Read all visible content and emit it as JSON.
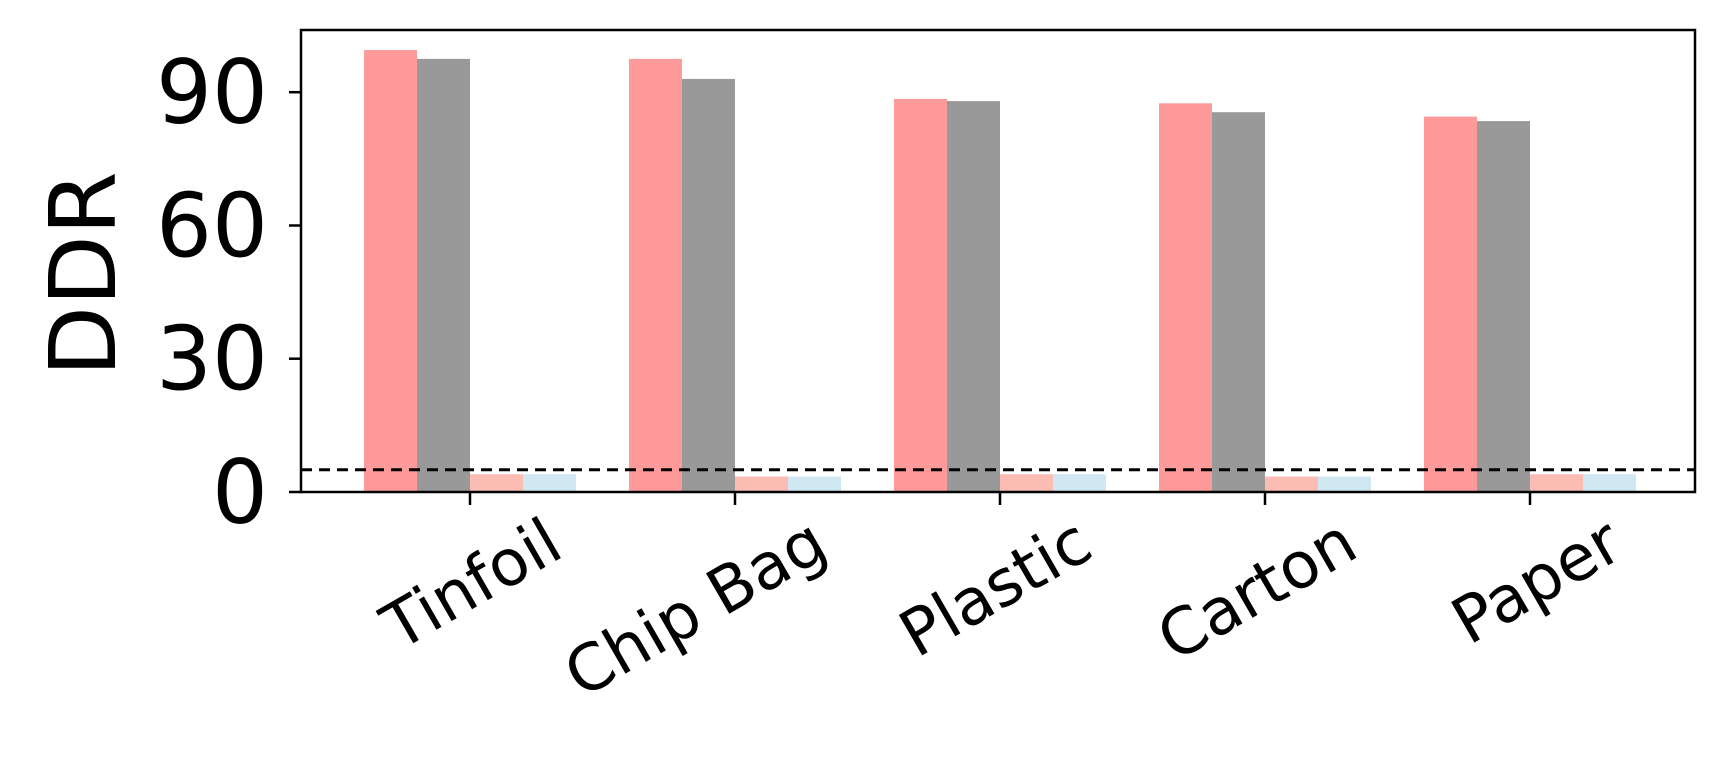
{
  "chart_data": {
    "type": "bar",
    "title": "",
    "xlabel": "",
    "ylabel": "DDR",
    "ylim": [
      0,
      104
    ],
    "yticks": [
      0,
      30,
      60,
      90
    ],
    "categories": [
      "Tinfoil",
      "Chip Bag",
      "Plastic",
      "Carton",
      "Paper"
    ],
    "series": [
      {
        "values": [
          99.5,
          97.5,
          88.5,
          87.5,
          84.5
        ],
        "color": "#ff9a9a"
      },
      {
        "values": [
          97.5,
          93.0,
          88.0,
          85.5,
          83.5
        ],
        "color": "#999999"
      },
      {
        "values": [
          4.0,
          3.5,
          4.0,
          3.5,
          4.0
        ],
        "color": "#fbbcb4"
      },
      {
        "values": [
          4.0,
          3.5,
          4.0,
          3.5,
          4.0
        ],
        "color": "#cfe8f2"
      }
    ],
    "threshold": 5,
    "threshold_style": "dashed",
    "grid": false,
    "legend": "none"
  }
}
